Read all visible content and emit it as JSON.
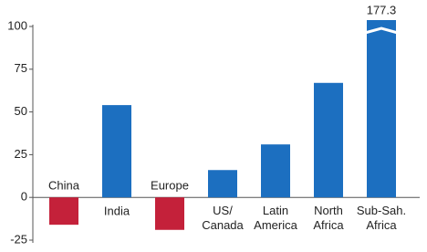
{
  "chart_data": {
    "type": "bar",
    "categories": [
      "China",
      "India",
      "Europe",
      "US/\nCanada",
      "Latin\nAmerica",
      "North\nAfrica",
      "Sub-Sah.\nAfrica"
    ],
    "values": [
      -16,
      54,
      -19,
      16,
      31,
      67,
      177.3
    ],
    "value_labels": [
      null,
      null,
      null,
      null,
      null,
      null,
      "177.3"
    ],
    "colors": [
      "#c4213a",
      "#1c6fc0",
      "#c4213a",
      "#1c6fc0",
      "#1c6fc0",
      "#1c6fc0",
      "#1c6fc0"
    ],
    "ylim": [
      -25,
      100
    ],
    "yticks": [
      -25,
      0,
      25,
      50,
      75,
      100
    ],
    "grid": false
  }
}
